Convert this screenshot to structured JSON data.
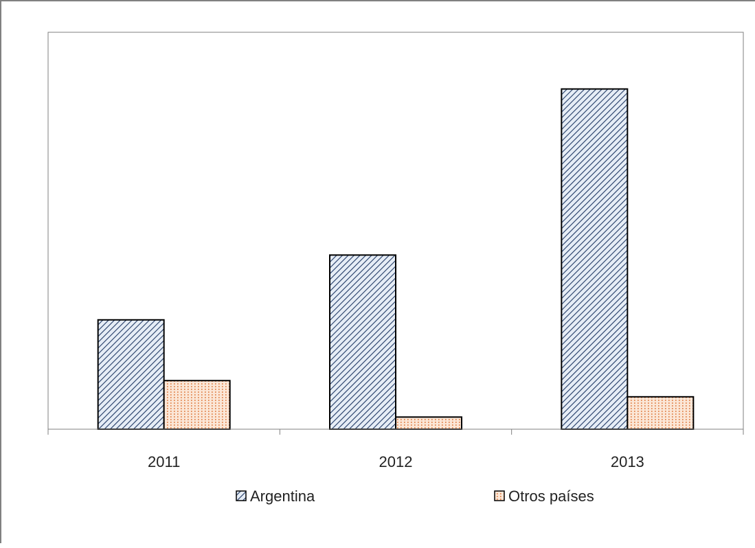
{
  "chart_data": {
    "type": "bar",
    "title": "",
    "xlabel": "",
    "ylabel": "",
    "categories": [
      "2011",
      "2012",
      "2013"
    ],
    "series": [
      {
        "name": "Argentina",
        "values": [
          27,
          43,
          84
        ],
        "pattern": "diagonal-hatch",
        "color": "#1f3864",
        "fill": "#dce6f2"
      },
      {
        "name": "Otros países",
        "values": [
          12,
          3,
          8
        ],
        "pattern": "vertical-dots",
        "color": "#e8a070",
        "fill": "#fbe3d0"
      }
    ],
    "ylim": [
      0,
      98
    ],
    "y_axis_visible": false,
    "grid": false,
    "legend_position": "bottom"
  }
}
